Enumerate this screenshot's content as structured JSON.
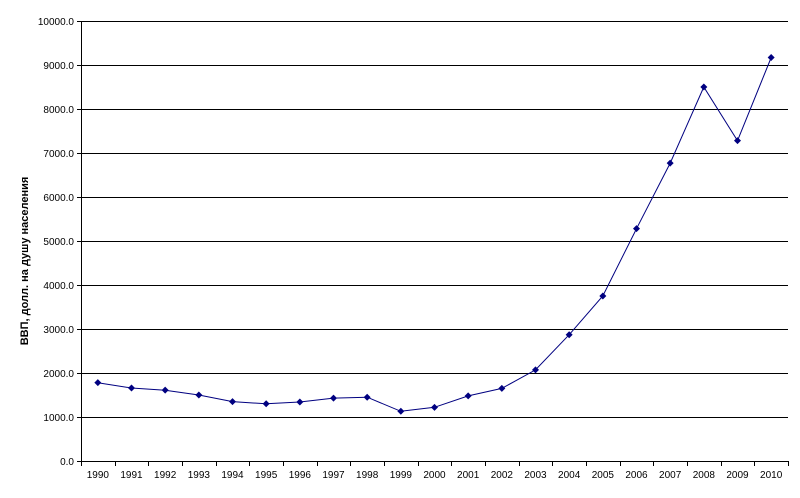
{
  "chart_data": {
    "type": "line",
    "title": "",
    "xlabel": "",
    "ylabel": "ВВП, долл. на душу населения",
    "categories": [
      "1990",
      "1991",
      "1992",
      "1993",
      "1994",
      "1995",
      "1996",
      "1997",
      "1998",
      "1999",
      "2000",
      "2001",
      "2002",
      "2003",
      "2004",
      "2005",
      "2006",
      "2007",
      "2008",
      "2009",
      "2010"
    ],
    "series": [
      {
        "values": [
          1780,
          1660,
          1610,
          1500,
          1350,
          1300,
          1340,
          1430,
          1450,
          1130,
          1220,
          1480,
          1650,
          2070,
          2870,
          3750,
          5280,
          6770,
          8500,
          7280,
          9170
        ]
      }
    ],
    "ylim": [
      0,
      10000
    ],
    "y_ticks": [
      "0.0",
      "1000.0",
      "2000.0",
      "3000.0",
      "4000.0",
      "5000.0",
      "6000.0",
      "7000.0",
      "8000.0",
      "9000.0",
      "10000.0"
    ],
    "grid": true,
    "legend": "none",
    "line_color": "#000080",
    "grid_color": "#000000"
  }
}
